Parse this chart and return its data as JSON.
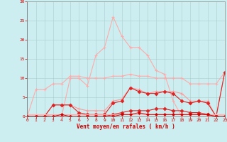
{
  "background_color": "#cceef0",
  "grid_color": "#aacccc",
  "xlabel": "Vent moyen/en rafales ( km/h )",
  "xlim": [
    0,
    23
  ],
  "ylim": [
    0,
    30
  ],
  "yticks": [
    0,
    5,
    10,
    15,
    20,
    25,
    30
  ],
  "xticks": [
    0,
    1,
    2,
    3,
    4,
    5,
    6,
    7,
    8,
    9,
    10,
    11,
    12,
    13,
    14,
    15,
    16,
    17,
    18,
    19,
    20,
    21,
    22,
    23
  ],
  "hours": [
    0,
    1,
    2,
    3,
    4,
    5,
    6,
    7,
    8,
    9,
    10,
    11,
    12,
    13,
    14,
    15,
    16,
    17,
    18,
    19,
    20,
    21,
    22,
    23
  ],
  "rafales_color": "#ffaaaa",
  "rafales_y": [
    0,
    0,
    0,
    0,
    0,
    10,
    10,
    8,
    16,
    18,
    26,
    21,
    18,
    18,
    16,
    12,
    11,
    4,
    0,
    0,
    0,
    0,
    0,
    0
  ],
  "line_flat_high_color": "#ffaaaa",
  "line_flat_high_y": [
    0,
    7,
    7,
    8.5,
    8.5,
    10.5,
    10.5,
    10,
    10,
    10,
    10.5,
    10.5,
    11,
    10.5,
    10.5,
    10,
    10,
    10,
    10,
    8.5,
    8.5,
    8.5,
    8.5,
    11.5
  ],
  "line_mid_pink_color": "#ff9999",
  "line_mid_pink_y": [
    0,
    0,
    0,
    3,
    3,
    3,
    2,
    1.5,
    1.5,
    1.5,
    4,
    4.5,
    7.5,
    7,
    6,
    6.5,
    6.5,
    6.5,
    6,
    4,
    4,
    4,
    0,
    11.5
  ],
  "line_mid_red_color": "#dd2222",
  "line_mid_red_y": [
    0,
    0,
    0,
    3,
    3,
    3,
    1,
    0.5,
    0.5,
    0.5,
    3.5,
    4,
    7.5,
    6.5,
    6,
    6,
    6.5,
    6,
    4,
    3.5,
    4,
    3.5,
    0,
    11.5
  ],
  "line_low_red_color": "#dd2222",
  "line_low_red_y": [
    0,
    0,
    0,
    0,
    0,
    0,
    0,
    0,
    0,
    0,
    0.5,
    1,
    1.5,
    1.5,
    1.5,
    2,
    2,
    1.5,
    1.5,
    1,
    1,
    0.5,
    0,
    0
  ],
  "line_flat_low_pink_color": "#ffaaaa",
  "line_flat_low_pink_y": [
    0.5,
    0.5,
    0.5,
    0.5,
    0.5,
    0.5,
    0.5,
    0.5,
    0.5,
    0.5,
    0.5,
    0.5,
    0.5,
    0.5,
    0.5,
    0.5,
    0.5,
    0.5,
    0.5,
    0.5,
    0.5,
    0.5,
    0.5,
    0.5
  ],
  "line_zero_pink_color": "#ffbbbb",
  "line_zero_pink_y": [
    0.5,
    0.5,
    0.5,
    0,
    0,
    0,
    0,
    0,
    0,
    0,
    0,
    0,
    0,
    0,
    0,
    0,
    0,
    0,
    0,
    0,
    0,
    0,
    0.5,
    0.5
  ],
  "line_tiny_red_color": "#cc0000",
  "line_tiny_red_y": [
    0,
    0,
    0,
    0,
    0.5,
    0,
    0,
    0,
    0,
    0,
    0,
    0.5,
    0.5,
    1,
    0.5,
    0.5,
    0.5,
    0.5,
    0.5,
    0.5,
    0.5,
    0.5,
    0,
    0
  ]
}
